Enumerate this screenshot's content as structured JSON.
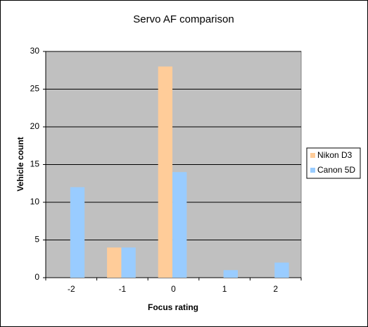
{
  "chart_data": {
    "type": "bar",
    "title": "Servo AF comparison",
    "x_label": "Focus rating",
    "y_label": "Vehicle count",
    "categories": [
      "-2",
      "-1",
      "0",
      "1",
      "2"
    ],
    "series": [
      {
        "name": "Nikon D3",
        "color": "#ffcc99",
        "values": [
          0,
          4,
          28,
          0,
          0
        ]
      },
      {
        "name": "Canon 5D",
        "color": "#99ccff",
        "values": [
          12,
          4,
          14,
          1,
          2
        ]
      }
    ],
    "ylim": [
      0,
      30
    ],
    "yticks": [
      0,
      5,
      10,
      15,
      20,
      25,
      30
    ],
    "grid": true,
    "legend": "right"
  }
}
